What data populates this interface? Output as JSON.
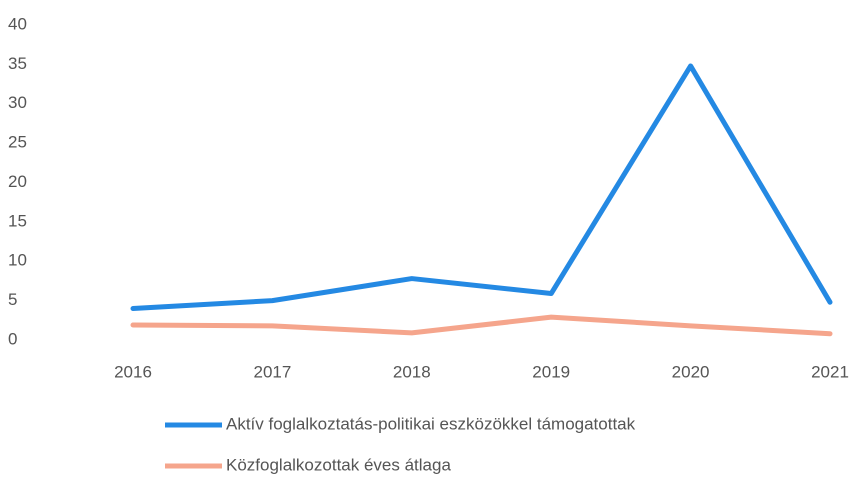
{
  "chart_data": {
    "type": "line",
    "categories": [
      "2016",
      "2017",
      "2018",
      "2019",
      "2020",
      "2021"
    ],
    "series": [
      {
        "name": "Aktív foglalkoztatás-politikai eszközökkel támogatottak",
        "color": "#2489e3",
        "values": [
          4,
          5,
          7.8,
          5.9,
          34.8,
          4.8
        ]
      },
      {
        "name": "Közfoglalkozottak éves átlaga",
        "color": "#f5a58c",
        "values": [
          1.9,
          1.8,
          0.9,
          2.9,
          1.8,
          0.8
        ]
      }
    ],
    "ylim": [
      0,
      40
    ],
    "yticks": [
      0,
      5,
      10,
      15,
      20,
      25,
      30,
      35,
      40
    ],
    "grid": false
  }
}
